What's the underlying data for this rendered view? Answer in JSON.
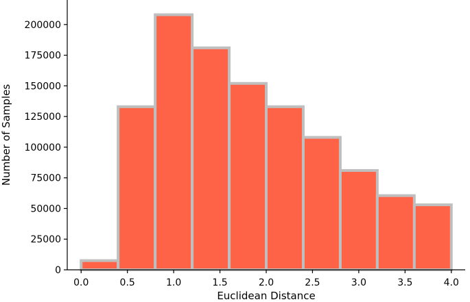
{
  "chart_data": {
    "type": "bar",
    "xlabel": "Euclidean Distance",
    "ylabel": "Number of Samples",
    "bar_color": "#ff6347",
    "edge_color": "#bfbfbf",
    "bins": [
      {
        "x0": 0.0,
        "x1": 0.4,
        "value": 7500
      },
      {
        "x0": 0.4,
        "x1": 0.8,
        "value": 133000
      },
      {
        "x0": 0.8,
        "x1": 1.2,
        "value": 208000
      },
      {
        "x0": 1.2,
        "x1": 1.6,
        "value": 181000
      },
      {
        "x0": 1.6,
        "x1": 2.0,
        "value": 152000
      },
      {
        "x0": 2.0,
        "x1": 2.4,
        "value": 133000
      },
      {
        "x0": 2.4,
        "x1": 2.8,
        "value": 108000
      },
      {
        "x0": 2.8,
        "x1": 3.2,
        "value": 81000
      },
      {
        "x0": 3.2,
        "x1": 3.6,
        "value": 60500
      },
      {
        "x0": 3.6,
        "x1": 4.0,
        "value": 53000
      }
    ],
    "xlim": [
      -0.15,
      4.15
    ],
    "ylim": [
      0,
      220000
    ],
    "xticks": [
      0.0,
      0.5,
      1.0,
      1.5,
      2.0,
      2.5,
      3.0,
      3.5,
      4.0
    ],
    "xtick_labels": [
      "0.0",
      "0.5",
      "1.0",
      "1.5",
      "2.0",
      "2.5",
      "3.0",
      "3.5",
      "4.0"
    ],
    "yticks": [
      0,
      25000,
      50000,
      75000,
      100000,
      125000,
      150000,
      175000,
      200000
    ],
    "ytick_labels": [
      "0",
      "25000",
      "50000",
      "75000",
      "100000",
      "125000",
      "150000",
      "175000",
      "200000"
    ],
    "grid": false
  }
}
